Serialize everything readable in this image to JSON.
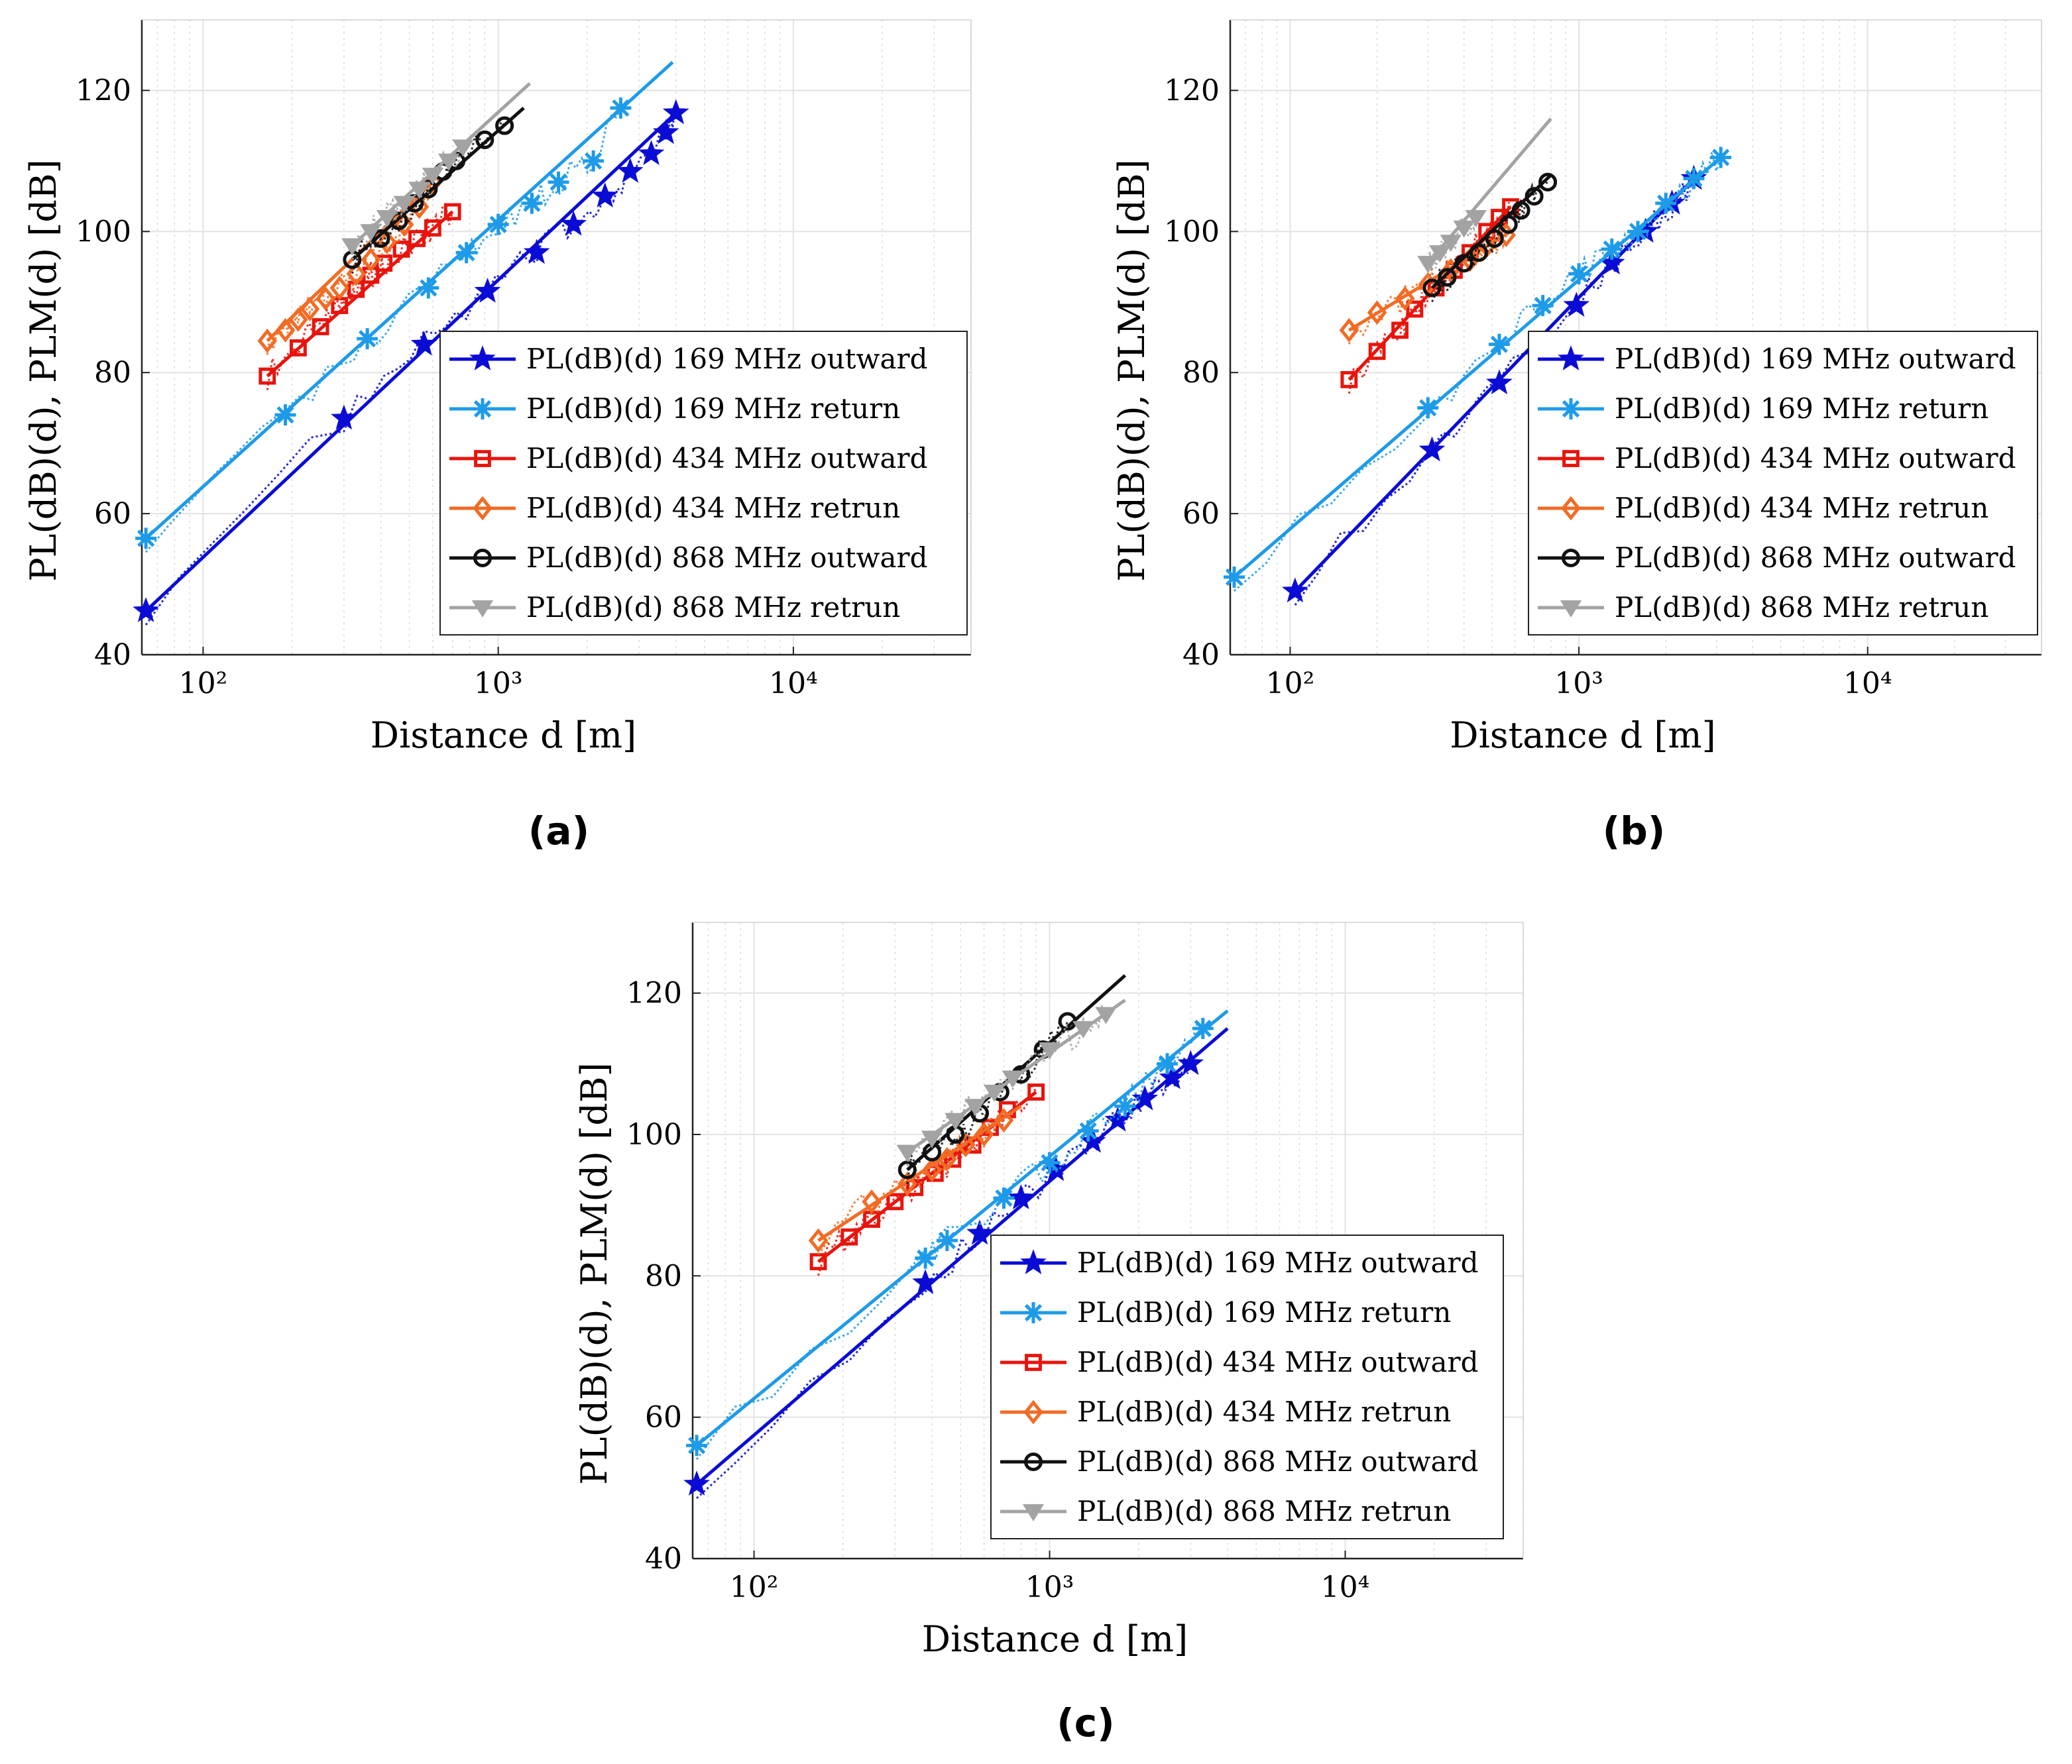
{
  "figure": {
    "captions": [
      "(a)",
      "(b)",
      "(c)"
    ]
  },
  "chart_data": [
    {
      "panel": "a",
      "type": "line",
      "xscale": "log",
      "xlabel": "Distance d [m]",
      "ylabel": "PL(dB)(d), PLM(d) [dB]",
      "xlim": [
        62,
        40000
      ],
      "ylim": [
        40,
        130
      ],
      "xticks": [
        {
          "value": 100,
          "label": "10²"
        },
        {
          "value": 1000,
          "label": "10³"
        },
        {
          "value": 10000,
          "label": "10⁴"
        }
      ],
      "yticks": [
        40,
        60,
        80,
        100,
        120
      ],
      "grid": true,
      "legend_position": "bottom-right",
      "series": [
        {
          "name": "PL(dB)(d) 169 MHz outward",
          "color": "#0b0bd6",
          "marker": "star",
          "fit": [
            [
              64,
              46.2
            ],
            [
              4000,
              116.8
            ]
          ],
          "markers": [
            [
              64,
              46.2
            ],
            [
              300,
              73.5
            ],
            [
              560,
              84
            ],
            [
              920,
              91.5
            ],
            [
              1350,
              97
            ],
            [
              1800,
              101
            ],
            [
              2300,
              105
            ],
            [
              2800,
              108.5
            ],
            [
              3300,
              111
            ],
            [
              3700,
              114
            ],
            [
              4000,
              116.8
            ]
          ]
        },
        {
          "name": "PL(dB)(d) 169 MHz return",
          "color": "#1e9be8",
          "marker": "asterisk",
          "fit": [
            [
              64,
              56.5
            ],
            [
              3900,
              124
            ]
          ],
          "markers": [
            [
              64,
              56.5
            ],
            [
              190,
              74
            ],
            [
              360,
              84.8
            ],
            [
              580,
              92
            ],
            [
              780,
              97
            ],
            [
              1000,
              101
            ],
            [
              1300,
              104
            ],
            [
              1600,
              107
            ],
            [
              2100,
              110
            ],
            [
              2600,
              117.5
            ]
          ]
        },
        {
          "name": "PL(dB)(d) 434 MHz outward",
          "color": "#e8140c",
          "marker": "square",
          "fit": [
            [
              165,
              79.5
            ],
            [
              700,
              102.8
            ]
          ],
          "markers": [
            [
              165,
              79.5
            ],
            [
              210,
              83.5
            ],
            [
              250,
              86.5
            ],
            [
              290,
              89.5
            ],
            [
              330,
              91.8
            ],
            [
              370,
              93.8
            ],
            [
              410,
              95.5
            ],
            [
              470,
              97.5
            ],
            [
              530,
              99
            ],
            [
              600,
              100.5
            ],
            [
              700,
              102.8
            ]
          ]
        },
        {
          "name": "PL(dB)(d) 434 MHz retrun",
          "color": "#f26b24",
          "marker": "diamond",
          "fit": [
            [
              165,
              84.5
            ],
            [
              600,
              107
            ]
          ],
          "markers": [
            [
              165,
              84.5
            ],
            [
              190,
              86
            ],
            [
              210,
              87.5
            ],
            [
              230,
              89
            ],
            [
              260,
              90.5
            ],
            [
              290,
              92
            ],
            [
              330,
              94
            ],
            [
              370,
              96
            ],
            [
              420,
              98.5
            ],
            [
              480,
              101
            ],
            [
              540,
              103.5
            ],
            [
              600,
              107
            ]
          ]
        },
        {
          "name": "PL(dB)(d) 868 MHz outward",
          "color": "#111111",
          "marker": "circle",
          "fit": [
            [
              320,
              96
            ],
            [
              1220,
              117.5
            ]
          ],
          "markers": [
            [
              320,
              96
            ],
            [
              400,
              99
            ],
            [
              460,
              101.5
            ],
            [
              520,
              104
            ],
            [
              580,
              106
            ],
            [
              650,
              108.5
            ],
            [
              720,
              110
            ],
            [
              900,
              113
            ],
            [
              1050,
              115
            ]
          ]
        },
        {
          "name": "PL(dB)(d) 868 MHz retrun",
          "color": "#a3a3a3",
          "marker": "triangle",
          "fit": [
            [
              320,
              98
            ],
            [
              1280,
              121
            ]
          ],
          "markers": [
            [
              320,
              98
            ],
            [
              370,
              100
            ],
            [
              420,
              102
            ],
            [
              480,
              104
            ],
            [
              540,
              106
            ],
            [
              600,
              108
            ],
            [
              680,
              110
            ],
            [
              760,
              112
            ]
          ]
        }
      ]
    },
    {
      "panel": "b",
      "type": "line",
      "xscale": "log",
      "xlabel": "Distance d [m]",
      "ylabel": "PL(dB)(d), PLM(d) [dB]",
      "xlim": [
        62,
        40000
      ],
      "ylim": [
        40,
        130
      ],
      "xticks": [
        {
          "value": 100,
          "label": "10²"
        },
        {
          "value": 1000,
          "label": "10³"
        },
        {
          "value": 10000,
          "label": "10⁴"
        }
      ],
      "yticks": [
        40,
        60,
        80,
        100,
        120
      ],
      "grid": true,
      "legend_position": "bottom-right",
      "series": [
        {
          "name": "PL(dB)(d) 169 MHz outward",
          "color": "#0b0bd6",
          "marker": "star",
          "fit": [
            [
              104,
              49
            ],
            [
              2500,
              107.5
            ]
          ],
          "markers": [
            [
              104,
              49
            ],
            [
              310,
              69
            ],
            [
              530,
              78.5
            ],
            [
              980,
              89.5
            ],
            [
              1300,
              95.5
            ],
            [
              1700,
              100
            ],
            [
              2100,
              104
            ],
            [
              2500,
              107.5
            ]
          ]
        },
        {
          "name": "PL(dB)(d) 169 MHz return",
          "color": "#1e9be8",
          "marker": "asterisk",
          "fit": [
            [
              64,
              51
            ],
            [
              3100,
              110.5
            ]
          ],
          "markers": [
            [
              64,
              51
            ],
            [
              300,
              75
            ],
            [
              530,
              84
            ],
            [
              750,
              89.5
            ],
            [
              1000,
              94
            ],
            [
              1300,
              97.5
            ],
            [
              1600,
              100
            ],
            [
              2000,
              104
            ],
            [
              2500,
              107.5
            ],
            [
              3100,
              110.5
            ]
          ]
        },
        {
          "name": "PL(dB)(d) 434 MHz outward",
          "color": "#e8140c",
          "marker": "square",
          "fit": [
            [
              160,
              79
            ],
            [
              580,
              103.5
            ]
          ],
          "markers": [
            [
              160,
              79
            ],
            [
              200,
              83
            ],
            [
              240,
              86
            ],
            [
              270,
              89
            ],
            [
              320,
              92
            ],
            [
              370,
              94.5
            ],
            [
              420,
              97
            ],
            [
              480,
              100
            ],
            [
              530,
              102
            ],
            [
              580,
              103.5
            ]
          ]
        },
        {
          "name": "PL(dB)(d) 434 MHz retrun",
          "color": "#f26b24",
          "marker": "diamond",
          "fit": [
            [
              160,
              86
            ],
            [
              580,
              100
            ]
          ],
          "markers": [
            [
              160,
              86
            ],
            [
              200,
              88.5
            ],
            [
              250,
              90.5
            ],
            [
              300,
              92.5
            ],
            [
              360,
              94.5
            ],
            [
              420,
              96
            ],
            [
              480,
              98
            ],
            [
              560,
              99.5
            ]
          ]
        },
        {
          "name": "PL(dB)(d) 868 MHz outward",
          "color": "#111111",
          "marker": "circle",
          "fit": [
            [
              310,
              92
            ],
            [
              800,
              108
            ]
          ],
          "markers": [
            [
              310,
              92
            ],
            [
              350,
              93.5
            ],
            [
              400,
              95.5
            ],
            [
              450,
              97
            ],
            [
              510,
              99
            ],
            [
              570,
              101
            ],
            [
              630,
              103
            ],
            [
              700,
              105
            ],
            [
              780,
              107
            ]
          ]
        },
        {
          "name": "PL(dB)(d) 868 MHz retrun",
          "color": "#a3a3a3",
          "marker": "triangle",
          "fit": [
            [
              300,
              95.5
            ],
            [
              800,
              116
            ]
          ],
          "markers": [
            [
              300,
              95.5
            ],
            [
              330,
              97
            ],
            [
              360,
              98.5
            ],
            [
              400,
              100.5
            ],
            [
              440,
              102
            ]
          ]
        }
      ]
    },
    {
      "panel": "c",
      "type": "line",
      "xscale": "log",
      "xlabel": "Distance d [m]",
      "ylabel": "PL(dB)(d), PLM(d) [dB]",
      "xlim": [
        62,
        40000
      ],
      "ylim": [
        40,
        130
      ],
      "xticks": [
        {
          "value": 100,
          "label": "10²"
        },
        {
          "value": 1000,
          "label": "10³"
        },
        {
          "value": 10000,
          "label": "10⁴"
        }
      ],
      "yticks": [
        40,
        60,
        80,
        100,
        120
      ],
      "grid": true,
      "legend_position": "bottom-right",
      "series": [
        {
          "name": "PL(dB)(d) 169 MHz outward",
          "color": "#0b0bd6",
          "marker": "star",
          "fit": [
            [
              64,
              50.5
            ],
            [
              4000,
              115
            ]
          ],
          "markers": [
            [
              64,
              50.5
            ],
            [
              380,
              79
            ],
            [
              580,
              86
            ],
            [
              800,
              91
            ],
            [
              1050,
              95
            ],
            [
              1400,
              99
            ],
            [
              1700,
              102
            ],
            [
              2100,
              105
            ],
            [
              2600,
              108
            ],
            [
              3000,
              110
            ]
          ]
        },
        {
          "name": "PL(dB)(d) 169 MHz return",
          "color": "#1e9be8",
          "marker": "asterisk",
          "fit": [
            [
              64,
              56
            ],
            [
              4000,
              117.5
            ]
          ],
          "markers": [
            [
              64,
              56
            ],
            [
              380,
              82.5
            ],
            [
              450,
              85
            ],
            [
              700,
              91
            ],
            [
              1000,
              96
            ],
            [
              1350,
              100.5
            ],
            [
              1800,
              104
            ],
            [
              2500,
              110
            ],
            [
              3300,
              115
            ]
          ]
        },
        {
          "name": "PL(dB)(d) 434 MHz outward",
          "color": "#e8140c",
          "marker": "square",
          "fit": [
            [
              165,
              82
            ],
            [
              900,
              106
            ]
          ],
          "markers": [
            [
              165,
              82
            ],
            [
              210,
              85.5
            ],
            [
              250,
              88
            ],
            [
              300,
              90.5
            ],
            [
              350,
              92.5
            ],
            [
              410,
              94.5
            ],
            [
              470,
              96.5
            ],
            [
              550,
              98.5
            ],
            [
              630,
              101
            ],
            [
              720,
              103.5
            ],
            [
              900,
              106
            ]
          ]
        },
        {
          "name": "PL(dB)(d) 434 MHz retrun",
          "color": "#f26b24",
          "marker": "diamond",
          "fit": [
            [
              165,
              85
            ],
            [
              800,
              104
            ]
          ],
          "markers": [
            [
              165,
              85
            ],
            [
              250,
              90.5
            ],
            [
              330,
              93
            ],
            [
              400,
              95
            ],
            [
              450,
              96.5
            ],
            [
              520,
              98.5
            ],
            [
              600,
              100
            ],
            [
              700,
              102
            ]
          ]
        },
        {
          "name": "PL(dB)(d) 868 MHz outward",
          "color": "#111111",
          "marker": "circle",
          "fit": [
            [
              330,
              95
            ],
            [
              1800,
              122.5
            ]
          ],
          "markers": [
            [
              330,
              95
            ],
            [
              400,
              97.5
            ],
            [
              480,
              100
            ],
            [
              580,
              103
            ],
            [
              680,
              106
            ],
            [
              800,
              108.5
            ],
            [
              950,
              112
            ],
            [
              1150,
              116
            ]
          ]
        },
        {
          "name": "PL(dB)(d) 868 MHz retrun",
          "color": "#a3a3a3",
          "marker": "triangle",
          "fit": [
            [
              330,
              97.5
            ],
            [
              1800,
              119
            ]
          ],
          "markers": [
            [
              330,
              97.5
            ],
            [
              400,
              99.5
            ],
            [
              480,
              102
            ],
            [
              560,
              104
            ],
            [
              650,
              106
            ],
            [
              750,
              108
            ],
            [
              1000,
              112
            ],
            [
              1300,
              115
            ],
            [
              1550,
              117
            ]
          ]
        }
      ]
    }
  ]
}
